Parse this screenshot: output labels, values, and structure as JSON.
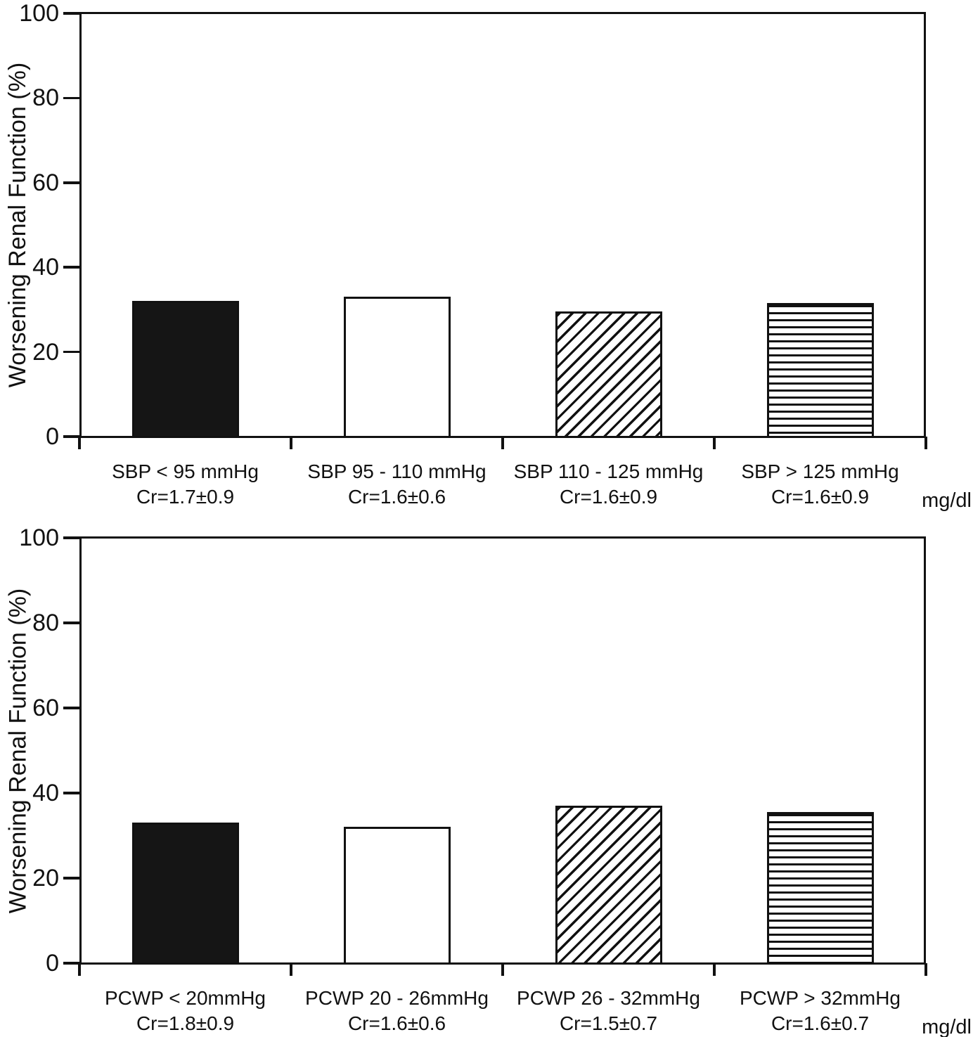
{
  "colors": {
    "ink": "#111111",
    "background": "#ffffff",
    "solid_bar": "#151515"
  },
  "chart_data": [
    {
      "type": "bar",
      "title": "",
      "ylabel": "Worsening Renal Function (%)",
      "xlabel": "",
      "unit_label": "mg/dl",
      "ylim": [
        0,
        100
      ],
      "yticks": [
        0,
        20,
        40,
        60,
        80,
        100
      ],
      "grid": false,
      "legend": "none",
      "categories": [
        "SBP < 95 mmHg",
        "SBP 95 - 110 mmHg",
        "SBP 110 - 125 mmHg",
        "SBP > 125 mmHg"
      ],
      "sublabels": [
        "Cr=1.7±0.9",
        "Cr=1.6±0.6",
        "Cr=1.6±0.9",
        "Cr=1.6±0.9"
      ],
      "values": [
        32,
        33,
        29.5,
        31.5
      ],
      "bar_styles": [
        "solid-black",
        "white",
        "diagonal-hatch",
        "horizontal-lines"
      ]
    },
    {
      "type": "bar",
      "title": "",
      "ylabel": "Worsening Renal Function (%)",
      "xlabel": "",
      "unit_label": "mg/dl",
      "ylim": [
        0,
        100
      ],
      "yticks": [
        0,
        20,
        40,
        60,
        80,
        100
      ],
      "grid": false,
      "legend": "none",
      "categories": [
        "PCWP < 20mmHg",
        "PCWP 20 - 26mmHg",
        "PCWP 26 - 32mmHg",
        "PCWP > 32mmHg"
      ],
      "sublabels": [
        "Cr=1.8±0.9",
        "Cr=1.6±0.6",
        "Cr=1.5±0.7",
        "Cr=1.6±0.7"
      ],
      "values": [
        33,
        32,
        37,
        35.5
      ],
      "bar_styles": [
        "solid-black",
        "white",
        "diagonal-hatch",
        "horizontal-lines"
      ]
    }
  ]
}
